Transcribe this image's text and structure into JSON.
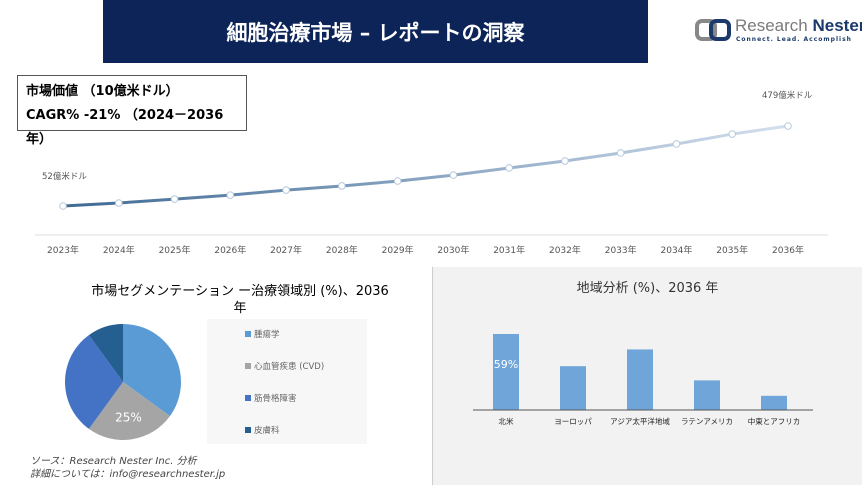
{
  "header": {
    "title": "細胞治療市場 – レポートの洞察"
  },
  "logo": {
    "name_part1": "Research",
    "name_part2": "Nester",
    "tagline": "Connect. Lead. Accomplish"
  },
  "info": {
    "market_value_label": "市場価値 （10億米ドル）",
    "cagr_label": "CAGR% -21% （2024－2036年）"
  },
  "colors": {
    "header_bg": "#0d2458",
    "line_start": "#3f6a94",
    "line_end": "#d3dfee",
    "bar": "#6fa5d9"
  },
  "chart_data": [
    {
      "type": "line",
      "categories": [
        "2023年",
        "2024年",
        "2025年",
        "2026年",
        "2027年",
        "2028年",
        "2029年",
        "2030年",
        "2031年",
        "2032年",
        "2033年",
        "2034年",
        "2035年",
        "2036年"
      ],
      "values": [
        52,
        68,
        89,
        110,
        137,
        159,
        185,
        217,
        255,
        292,
        335,
        383,
        436,
        479
      ],
      "annotations": [
        "52億米ドル",
        "479億米ドル"
      ],
      "grid": false
    },
    {
      "type": "pie",
      "title": "市場セグメンテーション ー治療領域別 (%)、2036 年",
      "labels": [
        "腫瘍学",
        "心血管疾患 (CVD)",
        "筋骨格障害",
        "皮膚科"
      ],
      "values": [
        35,
        25,
        30,
        10
      ],
      "data_labels": [
        "",
        "25%",
        "",
        ""
      ],
      "colors": [
        "#5b9bd5",
        "#a5a5a5",
        "#4472c4",
        "#255e91"
      ],
      "legend": "right"
    },
    {
      "type": "bar",
      "title": "地域分析 (%)、2036 年",
      "categories": [
        "北米",
        "ヨーロッパ",
        "アジア太平洋地域",
        "ラテンアメリカ",
        "中東とアフリカ"
      ],
      "values": [
        59,
        34,
        47,
        23,
        11
      ],
      "data_labels": [
        "59%",
        "",
        "",
        "",
        ""
      ]
    }
  ],
  "source": {
    "line1": "ソース：Research Nester Inc. 分析",
    "line2": "詳細については：info@researchnester.jp"
  }
}
